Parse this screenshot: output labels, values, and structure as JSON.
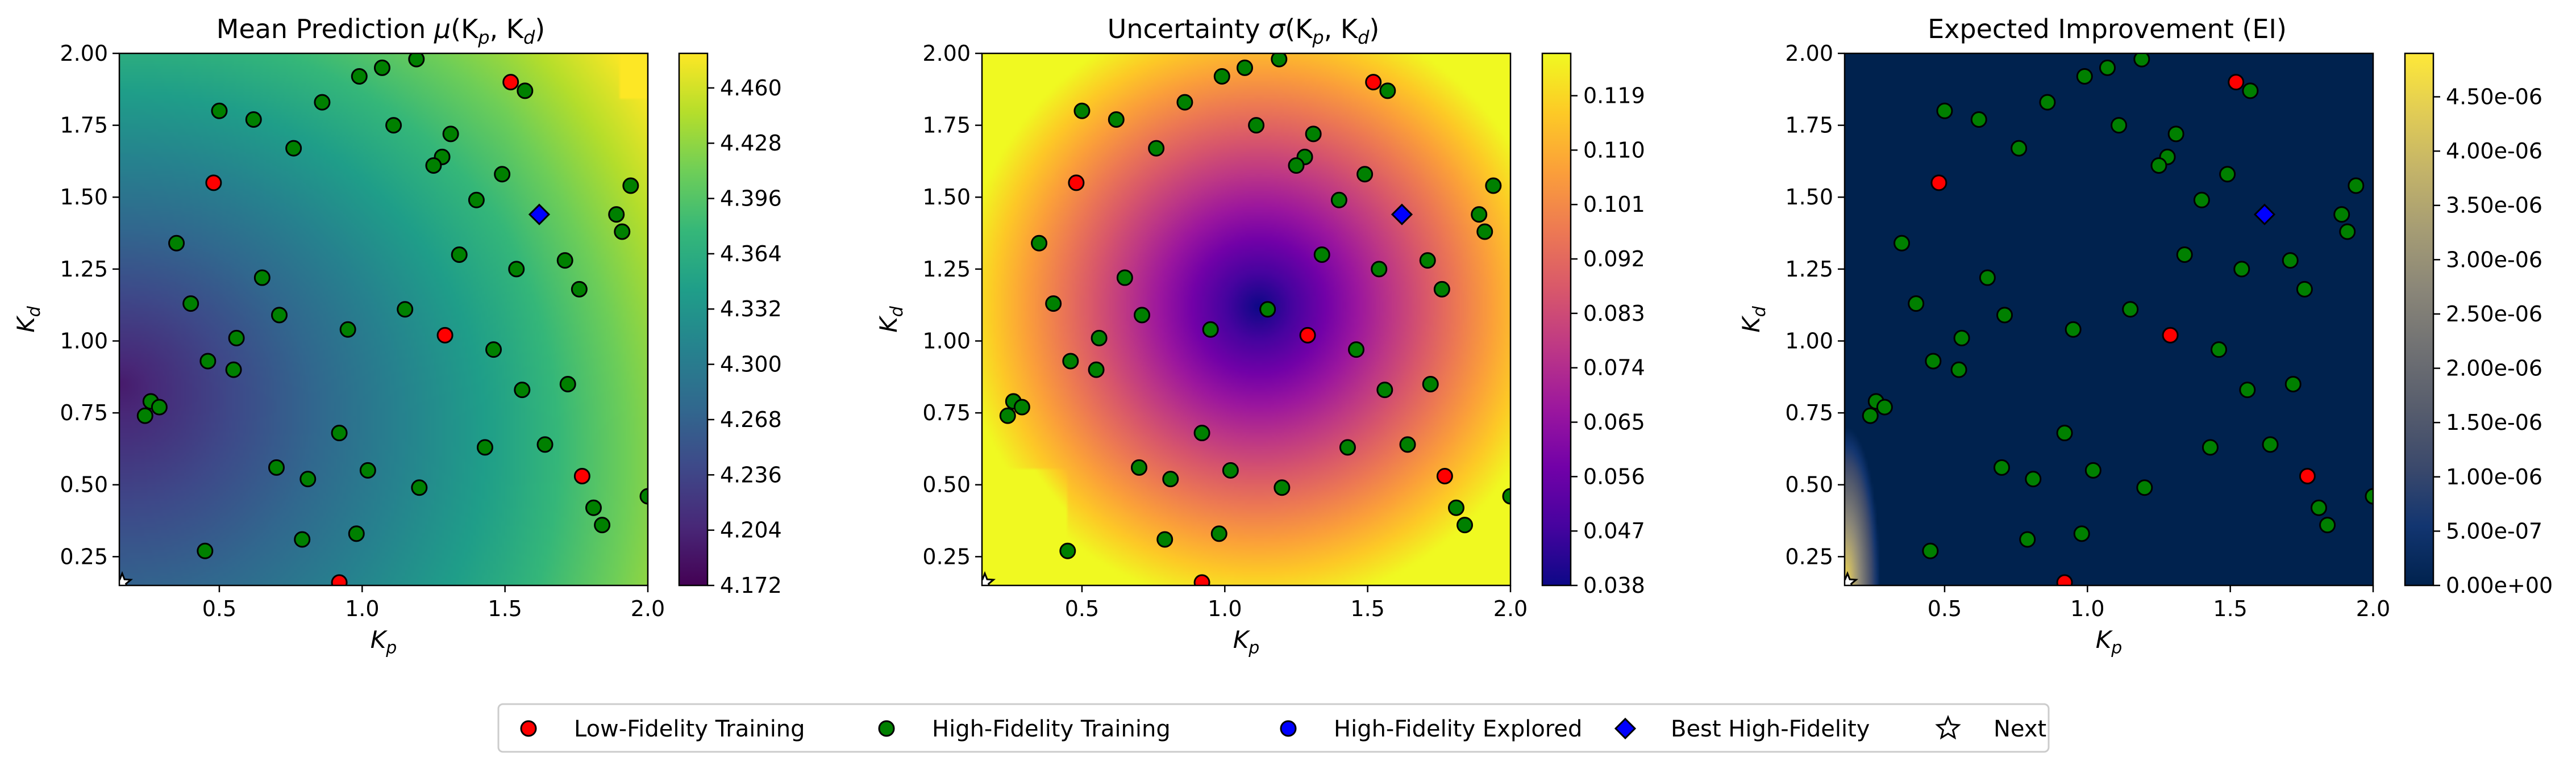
{
  "colors": {
    "low_fidelity": "#ff0000",
    "high_fidelity": "#008000",
    "explored": "#0000ff",
    "best": "#0000ff",
    "marker_edge": "#000000"
  },
  "chart_data": [
    {
      "type": "heatmap",
      "panel": "mean",
      "title": "Mean Prediction μ(Kp, Kd)",
      "title_parts": {
        "prefix": "Mean Prediction ",
        "sym": "μ",
        "args": "(K",
        "s1": "p",
        "mid": ", K",
        "s2": "d",
        "end": ")"
      },
      "xlabel": "Kp",
      "ylabel": "Kd",
      "xlim": [
        0.15,
        2.0
      ],
      "ylim": [
        0.15,
        2.0
      ],
      "xticks": [
        "0.5",
        "1.0",
        "1.5",
        "2.0"
      ],
      "yticks": [
        "0.25",
        "0.50",
        "0.75",
        "1.00",
        "1.25",
        "1.50",
        "1.75",
        "2.00"
      ],
      "colormap": "viridis",
      "clim": [
        4.172,
        4.48
      ],
      "colorbar_ticks": [
        "4.172",
        "4.204",
        "4.236",
        "4.268",
        "4.300",
        "4.332",
        "4.364",
        "4.396",
        "4.428",
        "4.460"
      ]
    },
    {
      "type": "heatmap",
      "panel": "uncertainty",
      "title": "Uncertainty σ(Kp, Kd)",
      "title_parts": {
        "prefix": "Uncertainty ",
        "sym": "σ",
        "args": "(K",
        "s1": "p",
        "mid": ", K",
        "s2": "d",
        "end": ")"
      },
      "xlabel": "Kp",
      "ylabel": "Kd",
      "xlim": [
        0.15,
        2.0
      ],
      "ylim": [
        0.15,
        2.0
      ],
      "xticks": [
        "0.5",
        "1.0",
        "1.5",
        "2.0"
      ],
      "yticks": [
        "0.25",
        "0.50",
        "0.75",
        "1.00",
        "1.25",
        "1.50",
        "1.75",
        "2.00"
      ],
      "colormap": "plasma",
      "clim": [
        0.038,
        0.126
      ],
      "colorbar_ticks": [
        "0.038",
        "0.047",
        "0.056",
        "0.065",
        "0.074",
        "0.083",
        "0.092",
        "0.101",
        "0.110",
        "0.119"
      ]
    },
    {
      "type": "heatmap",
      "panel": "ei",
      "title": "Expected Improvement (EI)",
      "xlabel": "Kp",
      "ylabel": "Kd",
      "xlim": [
        0.15,
        2.0
      ],
      "ylim": [
        0.15,
        2.0
      ],
      "xticks": [
        "0.5",
        "1.0",
        "1.5",
        "2.0"
      ],
      "yticks": [
        "0.25",
        "0.50",
        "0.75",
        "1.00",
        "1.25",
        "1.50",
        "1.75",
        "2.00"
      ],
      "colormap": "cividis",
      "clim": [
        0,
        4.9e-06
      ],
      "colorbar_ticks": [
        "0.00e+00",
        "5.00e-07",
        "1.00e-06",
        "1.50e-06",
        "2.00e-06",
        "2.50e-06",
        "3.00e-06",
        "3.50e-06",
        "4.00e-06",
        "4.50e-06"
      ]
    }
  ],
  "points": {
    "low_fidelity": [
      [
        1.52,
        1.9
      ],
      [
        0.48,
        1.55
      ],
      [
        1.29,
        1.02
      ],
      [
        1.77,
        0.53
      ],
      [
        0.92,
        0.16
      ]
    ],
    "high_fidelity": [
      [
        0.99,
        1.92
      ],
      [
        1.07,
        1.95
      ],
      [
        1.19,
        1.98
      ],
      [
        0.5,
        1.8
      ],
      [
        0.62,
        1.77
      ],
      [
        0.86,
        1.83
      ],
      [
        1.57,
        1.87
      ],
      [
        1.11,
        1.75
      ],
      [
        1.31,
        1.72
      ],
      [
        0.76,
        1.67
      ],
      [
        1.28,
        1.64
      ],
      [
        1.25,
        1.61
      ],
      [
        1.49,
        1.58
      ],
      [
        1.94,
        1.54
      ],
      [
        1.89,
        1.44
      ],
      [
        1.4,
        1.49
      ],
      [
        1.91,
        1.38
      ],
      [
        0.35,
        1.34
      ],
      [
        1.34,
        1.3
      ],
      [
        0.65,
        1.22
      ],
      [
        1.71,
        1.28
      ],
      [
        1.54,
        1.25
      ],
      [
        1.76,
        1.18
      ],
      [
        0.4,
        1.13
      ],
      [
        1.15,
        1.11
      ],
      [
        0.71,
        1.09
      ],
      [
        0.95,
        1.04
      ],
      [
        0.56,
        1.01
      ],
      [
        1.46,
        0.97
      ],
      [
        0.46,
        0.93
      ],
      [
        0.55,
        0.9
      ],
      [
        1.56,
        0.83
      ],
      [
        1.72,
        0.85
      ],
      [
        0.26,
        0.79
      ],
      [
        0.29,
        0.77
      ],
      [
        0.24,
        0.74
      ],
      [
        0.92,
        0.68
      ],
      [
        1.43,
        0.63
      ],
      [
        1.64,
        0.64
      ],
      [
        0.7,
        0.56
      ],
      [
        1.02,
        0.55
      ],
      [
        0.81,
        0.52
      ],
      [
        1.2,
        0.49
      ],
      [
        2.0,
        0.46
      ],
      [
        1.81,
        0.42
      ],
      [
        1.84,
        0.36
      ],
      [
        0.98,
        0.33
      ],
      [
        0.79,
        0.31
      ],
      [
        0.45,
        0.27
      ]
    ],
    "high_fidelity_explored": [],
    "best_high_fidelity": [
      [
        1.62,
        1.44
      ]
    ],
    "next": [
      [
        0.16,
        0.16
      ]
    ]
  },
  "legend": {
    "items": [
      {
        "label": "Low-Fidelity Training",
        "marker": "circle",
        "color": "#ff0000"
      },
      {
        "label": "High-Fidelity Training",
        "marker": "circle",
        "color": "#008000"
      },
      {
        "label": "High-Fidelity Explored",
        "marker": "circle",
        "color": "#0000ff"
      },
      {
        "label": "Best High-Fidelity",
        "marker": "diamond",
        "color": "#0000ff"
      },
      {
        "label": "Next",
        "marker": "star",
        "color": "#ffffff"
      }
    ]
  }
}
